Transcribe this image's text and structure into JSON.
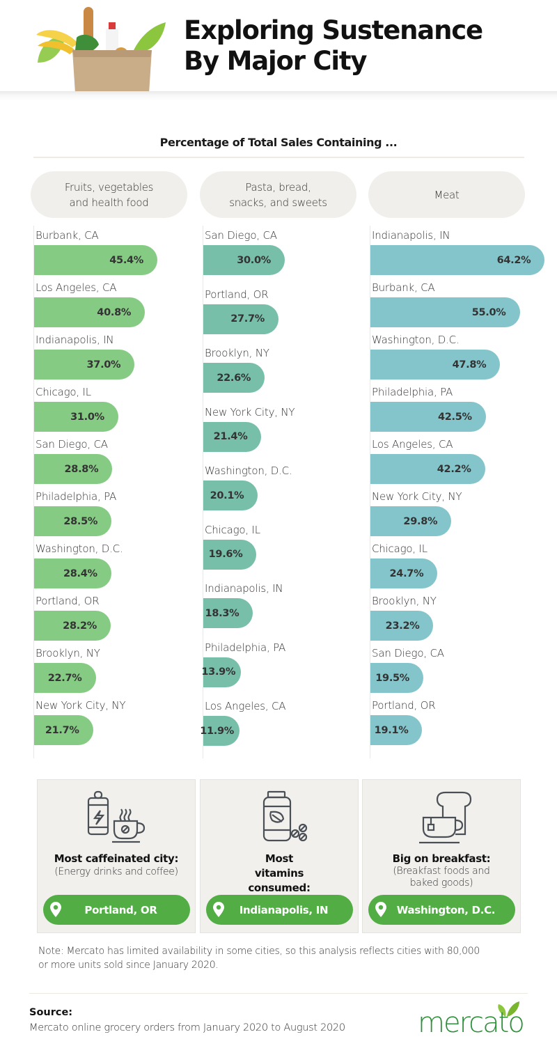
{
  "header": {
    "title_line1": "Exploring Sustenance",
    "title_line2": "By Major City",
    "hero_image": "grocery-bag-illustration"
  },
  "colors": {
    "fruits_bar": "#86cb84",
    "pasta_bar": "#77bfa9",
    "meat_bar": "#84c5cb",
    "callout_green": "#52ad45",
    "pill_bg": "#f1efeb",
    "logo_green": "#2f8f3a"
  },
  "chart_data": {
    "type": "bar",
    "orientation": "horizontal",
    "title": "Percentage of Total Sales Containing ...",
    "unit": "%",
    "xlim": [
      0,
      65
    ],
    "grid": false,
    "panels": [
      {
        "category": "Fruits, vegetables and health food",
        "categories": [
          "Burbank, CA",
          "Los Angeles, CA",
          "Indianapolis, IN",
          "Chicago, IL",
          "San Diego, CA",
          "Philadelphia, PA",
          "Washington, D.C.",
          "Portland, OR",
          "Brooklyn, NY",
          "New York City, NY"
        ],
        "values": [
          45.4,
          40.8,
          37.0,
          31.0,
          28.8,
          28.5,
          28.4,
          28.2,
          22.7,
          21.7
        ],
        "labels": [
          "45.4%",
          "40.8%",
          "37.0%",
          "31.0%",
          "28.8%",
          "28.5%",
          "28.4%",
          "28.2%",
          "22.7%",
          "21.7%"
        ]
      },
      {
        "category": "Pasta, bread, snacks, and sweets",
        "categories": [
          "San Diego, CA",
          "Portland, OR",
          "Brooklyn, NY",
          "New York City, NY",
          "Washington, D.C.",
          "Chicago, IL",
          "Indianapolis, IN",
          "Philadelphia, PA",
          "Los Angeles, CA"
        ],
        "values": [
          30.0,
          27.7,
          22.6,
          21.4,
          20.1,
          19.6,
          18.3,
          13.9,
          11.9
        ],
        "labels": [
          "30.0%",
          "27.7%",
          "22.6%",
          "21.4%",
          "20.1%",
          "19.6%",
          "18.3%",
          "13.9%",
          "11.9%"
        ]
      },
      {
        "category": "Meat",
        "categories": [
          "Indianapolis, IN",
          "Burbank, CA",
          "Washington, D.C.",
          "Philadelphia, PA",
          "Los Angeles, CA",
          "New York City, NY",
          "Chicago, IL",
          "Brooklyn, NY",
          "San Diego, CA",
          "Portland, OR"
        ],
        "values": [
          64.2,
          55.0,
          47.8,
          42.5,
          42.2,
          29.8,
          24.7,
          23.2,
          19.5,
          19.1
        ],
        "labels": [
          "64.2%",
          "55.0%",
          "47.8%",
          "42.5%",
          "42.2%",
          "29.8%",
          "24.7%",
          "23.2%",
          "19.5%",
          "19.1%"
        ]
      }
    ]
  },
  "callouts": [
    {
      "title": "Most caffeinated city:",
      "subtitle": "(Energy drinks and coffee)",
      "city": "Portland, OR",
      "icon": "energy-drink-coffee-icon"
    },
    {
      "title": "Most vitamins consumed:",
      "subtitle": "",
      "city": "Indianapolis, IN",
      "icon": "vitamin-bottle-icon"
    },
    {
      "title": "Big on breakfast:",
      "subtitle": "(Breakfast foods and baked goods)",
      "city": "Washington, D.C.",
      "icon": "tea-toast-icon"
    }
  ],
  "footer": {
    "note": "Note: Mercato has limited availability in some cities, so this analysis reflects cities with 80,000 or more units sold since January 2020.",
    "source_label": "Source:",
    "source_text": "Mercato online grocery orders from January 2020 to August 2020",
    "logo_text": "mercato"
  }
}
